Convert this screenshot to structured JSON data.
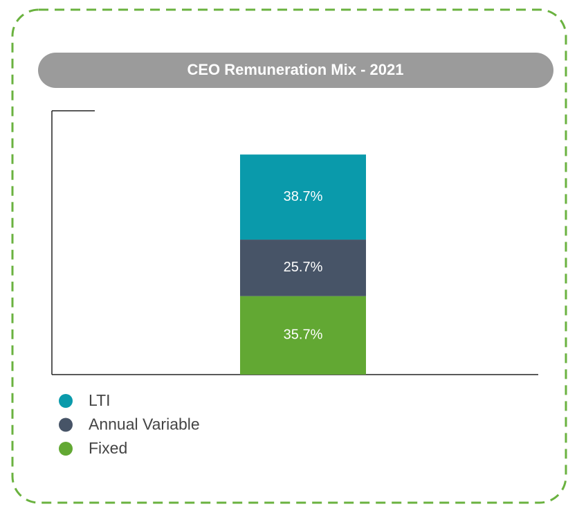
{
  "chart_data": {
    "type": "stacked_bar",
    "title": "CEO Remuneration Mix - 2021",
    "categories": [
      null
    ],
    "series": [
      {
        "name": "LTI",
        "color": "#0a9aab",
        "values": [
          38.7
        ],
        "value_labels": [
          "38.7%"
        ]
      },
      {
        "name": "Annual Variable",
        "color": "#475467",
        "values": [
          25.7
        ],
        "value_labels": [
          "25.7%"
        ]
      },
      {
        "name": "Fixed",
        "color": "#62a833",
        "values": [
          35.7
        ],
        "value_labels": [
          "35.7%"
        ]
      }
    ],
    "ylim": [
      0,
      120
    ],
    "legend": "bottom-left"
  }
}
